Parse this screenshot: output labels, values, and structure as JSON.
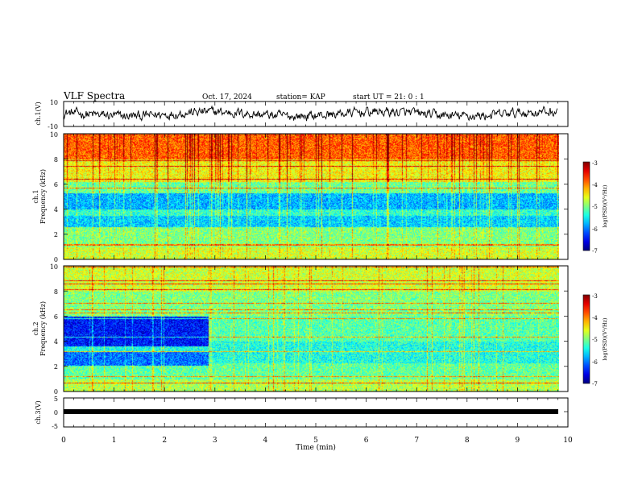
{
  "header": {
    "title": "VLF Spectra",
    "date": "Oct. 17, 2024",
    "station": "station= KAP",
    "start": "start UT =  21: 0  : 1"
  },
  "chart_data": [
    {
      "type": "line",
      "panel": "ch1-waveform",
      "ylabel": "ch.1(V)",
      "ylim": [
        -10,
        10
      ],
      "y_ticks": [
        "10",
        "-10"
      ],
      "xlim": [
        0,
        10
      ]
    },
    {
      "type": "heatmap",
      "panel": "ch1-spectrogram",
      "ylabel_line1": "ch.1",
      "ylabel_line2": "Frequency (kHz)",
      "ylim": [
        0,
        10
      ],
      "y_ticks": [
        "0",
        "2",
        "4",
        "6",
        "8",
        "10"
      ],
      "xlim": [
        0,
        10
      ],
      "data_end_min": 9.8,
      "colorbar": {
        "label": "log(PSD)(V²/Hz)",
        "range": [
          -7,
          -3
        ],
        "ticks": [
          "-3",
          "-4",
          "-5",
          "-6",
          "-7"
        ]
      }
    },
    {
      "type": "heatmap",
      "panel": "ch2-spectrogram",
      "ylabel_line1": "ch.2",
      "ylabel_line2": "Frequency (kHz)",
      "ylim": [
        0,
        10
      ],
      "y_ticks": [
        "0",
        "2",
        "4",
        "6",
        "8",
        "10"
      ],
      "xlim": [
        0,
        10
      ],
      "data_end_min": 9.8,
      "colorbar": {
        "label": "log(PSD)(V²/Hz)",
        "range": [
          -7,
          -3
        ],
        "ticks": [
          "-3",
          "-4",
          "-5",
          "-6",
          "-7"
        ]
      }
    },
    {
      "type": "line",
      "panel": "ch3-waveform",
      "ylabel": "ch.3(V)",
      "ylim": [
        -5,
        5
      ],
      "y_ticks": [
        "5",
        "0",
        "-5"
      ],
      "xlim": [
        0,
        10
      ]
    }
  ],
  "xaxis": {
    "label": "Time (min)",
    "ticks": [
      "0",
      "1",
      "2",
      "3",
      "4",
      "5",
      "6",
      "7",
      "8",
      "9",
      "10"
    ]
  }
}
